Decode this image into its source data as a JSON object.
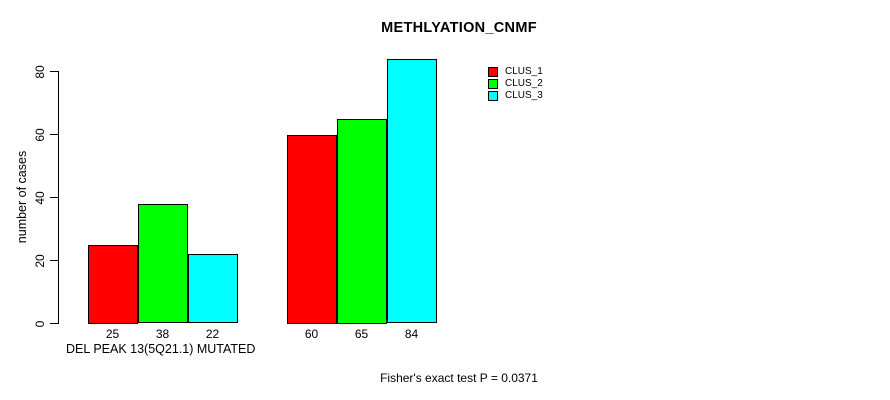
{
  "chart_data": {
    "type": "bar",
    "title": "METHLYATION_CNMF",
    "ylabel": "number of cases",
    "xlabel": "DEL PEAK 13(5Q21.1) MUTATED",
    "annotation": "Fisher's exact test P = 0.0371",
    "yticks": [
      0,
      20,
      40,
      60,
      80
    ],
    "ylim": [
      0,
      88
    ],
    "grid": false,
    "legend_position": "top-right",
    "categories": [
      "",
      ""
    ],
    "series": [
      {
        "name": "CLUS_1",
        "color": "#ff0000",
        "values": [
          25,
          60
        ]
      },
      {
        "name": "CLUS_2",
        "color": "#00ff00",
        "values": [
          38,
          65
        ]
      },
      {
        "name": "CLUS_3",
        "color": "#00ffff",
        "values": [
          22,
          84
        ]
      }
    ],
    "bar_value_labels": true,
    "colors": {
      "background": "#ffffff",
      "axis": "#000000",
      "text": "#000000"
    }
  }
}
